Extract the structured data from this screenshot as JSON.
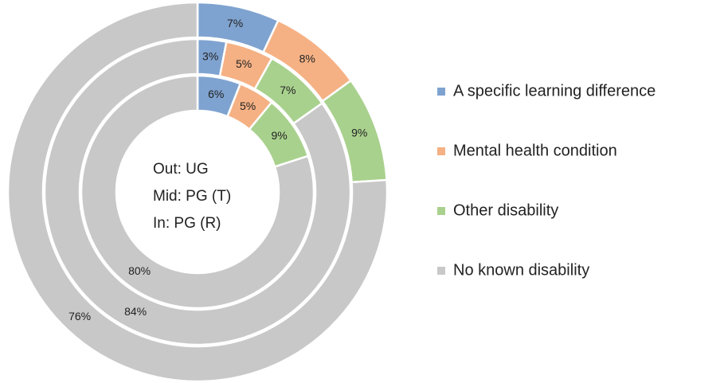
{
  "chart_data": {
    "type": "multi-donut",
    "categories": [
      "A specific learning difference",
      "Mental health condition",
      "Other disability",
      "No known disability"
    ],
    "colors": [
      "#7fa3d0",
      "#f5b184",
      "#a9d18e",
      "#c8c8c8"
    ],
    "center_labels": [
      "Out: UG",
      "Mid: PG (T)",
      "In: PG (R)"
    ],
    "series": [
      {
        "values": [
          7,
          8,
          9,
          76
        ],
        "value_labels": [
          "7%",
          "8%",
          "9%",
          "76%"
        ]
      },
      {
        "values": [
          3,
          5,
          7,
          84
        ],
        "value_labels": [
          "3%",
          "5%",
          "7%",
          "84%"
        ]
      },
      {
        "values": [
          6,
          5,
          9,
          80
        ],
        "value_labels": [
          "6%",
          "5%",
          "9%",
          "80%"
        ]
      }
    ],
    "legend": "right"
  }
}
